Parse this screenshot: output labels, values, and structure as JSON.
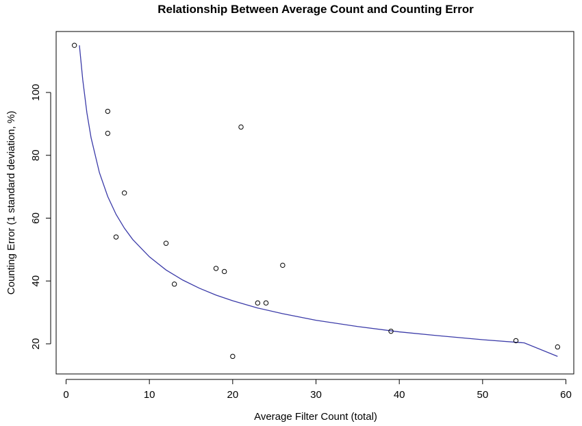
{
  "chart_data": {
    "type": "scatter",
    "title": "Relationship Between Average Count and Counting Error",
    "xlabel": "Average Filter Count (total)",
    "ylabel": "Counting Error (1 standard deviation, %)",
    "xlim": [
      0,
      60
    ],
    "ylim": [
      12,
      118
    ],
    "xticks": [
      0,
      10,
      20,
      30,
      40,
      50,
      60
    ],
    "yticks": [
      20,
      40,
      60,
      80,
      100
    ],
    "grid": false,
    "legend": "none",
    "points": [
      {
        "x": 1,
        "y": 115
      },
      {
        "x": 5,
        "y": 94
      },
      {
        "x": 5,
        "y": 87
      },
      {
        "x": 6,
        "y": 54
      },
      {
        "x": 7,
        "y": 68
      },
      {
        "x": 12,
        "y": 52
      },
      {
        "x": 13,
        "y": 39
      },
      {
        "x": 18,
        "y": 44
      },
      {
        "x": 19,
        "y": 43
      },
      {
        "x": 20,
        "y": 16
      },
      {
        "x": 21,
        "y": 89
      },
      {
        "x": 23,
        "y": 33
      },
      {
        "x": 24,
        "y": 33
      },
      {
        "x": 26,
        "y": 45
      },
      {
        "x": 39,
        "y": 24
      },
      {
        "x": 54,
        "y": 21
      },
      {
        "x": 59,
        "y": 19
      }
    ],
    "fit_curve": {
      "x": [
        1.6,
        2,
        2.5,
        3,
        4,
        5,
        6,
        7,
        8,
        10,
        12,
        14,
        16,
        18,
        20,
        23,
        26,
        30,
        35,
        40,
        45,
        50,
        55,
        59
      ],
      "y": [
        115,
        104.1,
        93.5,
        85.6,
        74.5,
        66.9,
        61.2,
        56.8,
        53.2,
        47.7,
        43.5,
        40.3,
        37.7,
        35.5,
        33.7,
        31.4,
        29.6,
        27.5,
        25.5,
        23.8,
        22.5,
        21.3,
        20.3,
        16
      ],
      "color": "#3a3aa8"
    },
    "marker_color": "#000000",
    "curve_color": "#3a3aa8"
  }
}
